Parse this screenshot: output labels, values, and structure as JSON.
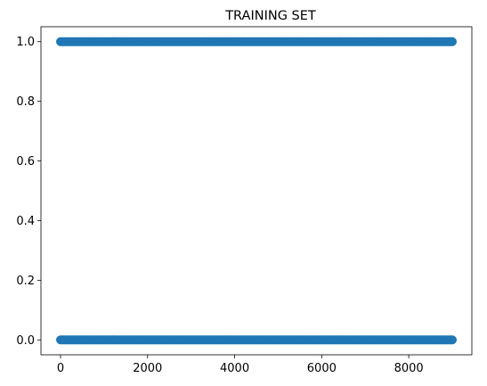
{
  "chart_data": {
    "type": "scatter",
    "title": "TRAINING SET",
    "xlabel": "",
    "ylabel": "",
    "xlim": [
      -450,
      9450
    ],
    "ylim": [
      -0.05,
      1.05
    ],
    "xticks": [
      0,
      2000,
      4000,
      6000,
      8000
    ],
    "xtick_labels": [
      "0",
      "2000",
      "4000",
      "6000",
      "8000"
    ],
    "yticks": [
      0.0,
      0.2,
      0.4,
      0.6,
      0.8,
      1.0
    ],
    "ytick_labels": [
      "0.0",
      "0.2",
      "0.4",
      "0.6",
      "0.8",
      "1.0"
    ],
    "grid": false,
    "marker_color": "#1f77b4",
    "series": [
      {
        "x_range": [
          0,
          9000
        ],
        "y": 0,
        "description": "dense points spanning x from 0 to ~9000 at y=0"
      },
      {
        "x_range": [
          0,
          9000
        ],
        "y": 1,
        "description": "dense points spanning x from 0 to ~9000 at y=1"
      }
    ]
  }
}
